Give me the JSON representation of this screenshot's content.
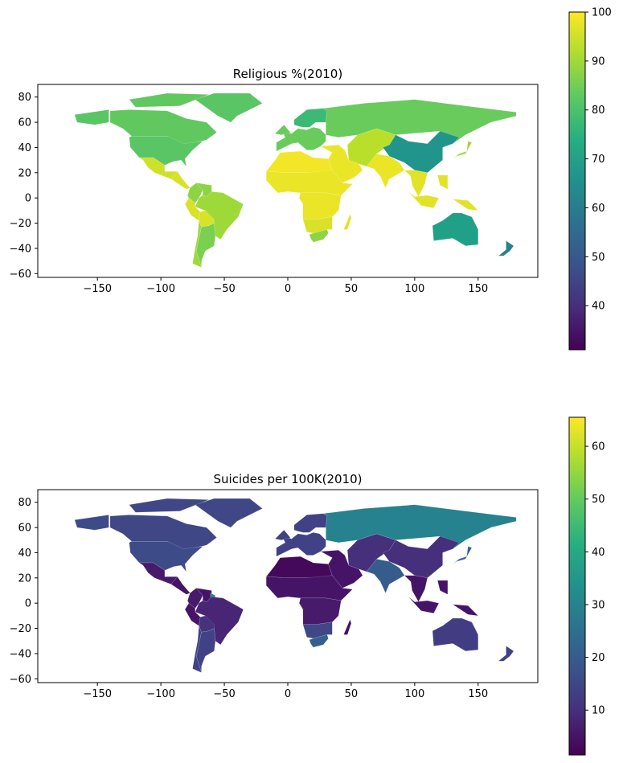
{
  "chart_data": [
    {
      "type": "choropleth",
      "title": "Religious %(2010)",
      "xlabel": "",
      "ylabel": "",
      "xlim": [
        -197,
        197
      ],
      "ylim": [
        -63,
        90
      ],
      "xticks": [
        "-150",
        "-100",
        "-50",
        "0",
        "50",
        "100",
        "150"
      ],
      "yticks": [
        "-60",
        "-40",
        "-20",
        "0",
        "20",
        "40",
        "60",
        "80"
      ],
      "colorbar": {
        "min": 31,
        "max": 100,
        "ticks": [
          "40",
          "50",
          "60",
          "70",
          "80",
          "90",
          "100"
        ],
        "colormap": "viridis"
      },
      "regions": [
        {
          "name": "Canada",
          "value": 83
        },
        {
          "name": "USA",
          "value": 82
        },
        {
          "name": "Greenland",
          "value": 82
        },
        {
          "name": "Mexico",
          "value": 95
        },
        {
          "name": "Central America",
          "value": 96
        },
        {
          "name": "Colombia",
          "value": 88
        },
        {
          "name": "Venezuela",
          "value": 88
        },
        {
          "name": "Brazil",
          "value": 90
        },
        {
          "name": "Peru",
          "value": 96
        },
        {
          "name": "Bolivia",
          "value": 96
        },
        {
          "name": "Chile",
          "value": 90
        },
        {
          "name": "Argentina",
          "value": 86
        },
        {
          "name": "Northern Africa",
          "value": 99
        },
        {
          "name": "Sahel",
          "value": 98
        },
        {
          "name": "Central Africa",
          "value": 98
        },
        {
          "name": "Southern Africa",
          "value": 96
        },
        {
          "name": "South Africa",
          "value": 88
        },
        {
          "name": "Madagascar",
          "value": 97
        },
        {
          "name": "Middle East",
          "value": 98
        },
        {
          "name": "India",
          "value": 98
        },
        {
          "name": "Central Asia",
          "value": 93
        },
        {
          "name": "Europe",
          "value": 84
        },
        {
          "name": "Scandinavia",
          "value": 78
        },
        {
          "name": "Russia",
          "value": 84
        },
        {
          "name": "China",
          "value": 67
        },
        {
          "name": "Southeast Asia",
          "value": 97
        },
        {
          "name": "Japan",
          "value": 90
        },
        {
          "name": "Australia",
          "value": 70
        },
        {
          "name": "New Zealand",
          "value": 62
        }
      ]
    },
    {
      "type": "choropleth",
      "title": "Suicides per 100K(2010)",
      "xlabel": "",
      "ylabel": "",
      "xlim": [
        -197,
        197
      ],
      "ylim": [
        -63,
        90
      ],
      "xticks": [
        "-150",
        "-100",
        "-50",
        "0",
        "50",
        "100",
        "150"
      ],
      "yticks": [
        "-60",
        "-40",
        "-20",
        "0",
        "20",
        "40",
        "60",
        "80"
      ],
      "colorbar": {
        "min": 1.5,
        "max": 65.5,
        "ticks": [
          "10",
          "20",
          "30",
          "40",
          "50",
          "60"
        ],
        "colormap": "viridis"
      },
      "regions": [
        {
          "name": "Canada",
          "value": 15
        },
        {
          "name": "USA",
          "value": 16
        },
        {
          "name": "Greenland",
          "value": 15
        },
        {
          "name": "Mexico",
          "value": 6
        },
        {
          "name": "Central America",
          "value": 5
        },
        {
          "name": "Colombia",
          "value": 6
        },
        {
          "name": "Venezuela",
          "value": 5
        },
        {
          "name": "Guyana",
          "value": 31
        },
        {
          "name": "Brazil",
          "value": 8
        },
        {
          "name": "Peru",
          "value": 5
        },
        {
          "name": "Bolivia",
          "value": 11
        },
        {
          "name": "Chile",
          "value": 14
        },
        {
          "name": "Argentina",
          "value": 14
        },
        {
          "name": "Northern Africa",
          "value": 3
        },
        {
          "name": "Sahel",
          "value": 5
        },
        {
          "name": "Central Africa",
          "value": 6
        },
        {
          "name": "Southern Africa",
          "value": 15
        },
        {
          "name": "South Africa",
          "value": 21
        },
        {
          "name": "Madagascar",
          "value": 4
        },
        {
          "name": "Middle East",
          "value": 5
        },
        {
          "name": "India",
          "value": 20
        },
        {
          "name": "Central Asia",
          "value": 10
        },
        {
          "name": "Europe",
          "value": 14
        },
        {
          "name": "Scandinavia",
          "value": 14
        },
        {
          "name": "Russia",
          "value": 30
        },
        {
          "name": "China",
          "value": 10
        },
        {
          "name": "Southeast Asia",
          "value": 5
        },
        {
          "name": "Japan",
          "value": 22
        },
        {
          "name": "Australia",
          "value": 13
        },
        {
          "name": "New Zealand",
          "value": 14
        }
      ]
    }
  ]
}
